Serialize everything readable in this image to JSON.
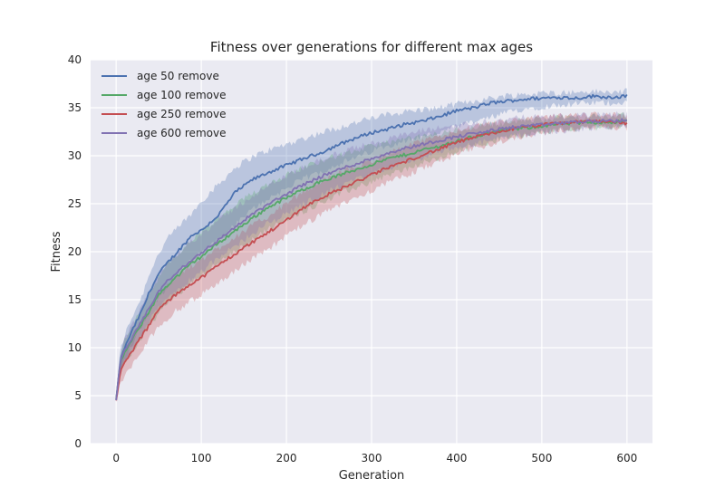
{
  "chart_data": {
    "type": "line",
    "title": "Fitness over generations for different max ages",
    "xlabel": "Generation",
    "ylabel": "Fitness",
    "xlim": [
      -30,
      630
    ],
    "ylim": [
      0,
      40
    ],
    "xticks": [
      0,
      100,
      200,
      300,
      400,
      500,
      600
    ],
    "yticks": [
      0,
      5,
      10,
      15,
      20,
      25,
      30,
      35,
      40
    ],
    "grid": true,
    "legend": "top-left",
    "colors": {
      "background": "#EAEAF2",
      "grid": "#FFFFFF"
    },
    "series": [
      {
        "name": "age 50 remove",
        "color": "#4C72B0",
        "x": [
          0,
          5,
          10,
          20,
          30,
          40,
          50,
          60,
          70,
          80,
          90,
          100,
          120,
          140,
          160,
          180,
          200,
          220,
          240,
          260,
          280,
          300,
          320,
          340,
          360,
          380,
          400,
          420,
          440,
          460,
          480,
          500,
          520,
          540,
          560,
          580,
          600
        ],
        "mean": [
          4.6,
          8.7,
          10.0,
          12.0,
          13.8,
          16.0,
          17.7,
          18.8,
          19.8,
          20.8,
          21.8,
          22.2,
          23.8,
          26.2,
          27.5,
          28.3,
          29.0,
          29.7,
          30.3,
          31.1,
          31.8,
          32.4,
          32.8,
          33.3,
          33.6,
          34.1,
          34.7,
          35.0,
          35.5,
          35.7,
          35.9,
          36.0,
          36.1,
          36.0,
          36.2,
          36.1,
          36.2
        ],
        "lower": [
          4.4,
          7.6,
          8.6,
          10.5,
          12.3,
          13.9,
          15.3,
          16.3,
          17.5,
          18.4,
          19.2,
          19.8,
          21.2,
          22.8,
          24.4,
          25.6,
          26.6,
          27.6,
          28.3,
          29.1,
          29.7,
          30.5,
          31.1,
          31.6,
          32.0,
          32.4,
          33.0,
          33.5,
          34.0,
          34.5,
          34.9,
          35.1,
          35.3,
          35.4,
          35.5,
          35.5,
          35.6
        ],
        "upper": [
          5.2,
          9.8,
          11.3,
          13.5,
          15.3,
          18.0,
          19.8,
          21.3,
          22.3,
          23.2,
          24.1,
          25.3,
          27.0,
          28.8,
          29.9,
          30.6,
          31.2,
          31.8,
          32.4,
          32.9,
          33.4,
          33.9,
          34.3,
          34.6,
          34.8,
          35.0,
          35.4,
          35.7,
          36.0,
          36.3,
          36.4,
          36.5,
          36.6,
          36.6,
          36.7,
          36.6,
          36.7
        ]
      },
      {
        "name": "age 100 remove",
        "color": "#55A868",
        "x": [
          0,
          5,
          10,
          20,
          30,
          40,
          50,
          60,
          70,
          80,
          90,
          100,
          120,
          140,
          160,
          180,
          200,
          220,
          240,
          260,
          280,
          300,
          320,
          340,
          360,
          380,
          400,
          420,
          440,
          460,
          480,
          500,
          520,
          540,
          560,
          580,
          600
        ],
        "mean": [
          4.5,
          8.5,
          9.5,
          11.0,
          12.5,
          14.0,
          15.5,
          16.5,
          17.3,
          18.1,
          18.9,
          19.5,
          20.9,
          22.2,
          23.5,
          24.7,
          25.6,
          26.5,
          27.3,
          27.9,
          28.5,
          29.1,
          29.7,
          30.1,
          30.6,
          31.0,
          31.5,
          32.0,
          32.4,
          32.7,
          32.9,
          33.1,
          33.3,
          33.4,
          33.5,
          33.5,
          33.6
        ],
        "lower": [
          4.3,
          7.5,
          8.3,
          9.8,
          11.0,
          12.4,
          13.6,
          14.6,
          15.4,
          16.2,
          17.0,
          17.6,
          18.8,
          20.0,
          21.2,
          22.4,
          23.3,
          24.2,
          25.1,
          25.9,
          26.6,
          27.3,
          28.0,
          28.6,
          29.2,
          29.7,
          30.4,
          31.0,
          31.5,
          31.9,
          32.2,
          32.5,
          32.7,
          32.8,
          32.9,
          33.0,
          33.1
        ],
        "upper": [
          5.0,
          9.4,
          10.7,
          12.4,
          14.0,
          15.8,
          17.4,
          18.6,
          19.5,
          20.4,
          21.3,
          22.1,
          23.4,
          24.8,
          26.1,
          27.2,
          28.0,
          28.8,
          29.5,
          30.0,
          30.5,
          31.0,
          31.4,
          31.7,
          32.0,
          32.3,
          32.7,
          33.0,
          33.3,
          33.5,
          33.7,
          33.8,
          34.0,
          34.0,
          34.1,
          34.1,
          34.2
        ]
      },
      {
        "name": "age 250 remove",
        "color": "#C44E52",
        "x": [
          0,
          5,
          10,
          20,
          30,
          40,
          50,
          60,
          70,
          80,
          90,
          100,
          120,
          140,
          160,
          180,
          200,
          220,
          240,
          260,
          280,
          300,
          320,
          340,
          360,
          380,
          400,
          420,
          440,
          460,
          480,
          500,
          520,
          540,
          560,
          580,
          600
        ],
        "mean": [
          4.5,
          7.5,
          8.5,
          9.8,
          11.2,
          12.5,
          14.0,
          14.8,
          15.5,
          16.2,
          16.8,
          17.3,
          18.6,
          19.8,
          21.0,
          22.1,
          23.3,
          24.6,
          25.6,
          26.4,
          27.2,
          28.0,
          28.8,
          29.4,
          30.1,
          30.7,
          31.4,
          31.9,
          32.3,
          32.7,
          33.0,
          33.2,
          33.4,
          33.5,
          33.6,
          33.6,
          33.4
        ],
        "lower": [
          4.3,
          6.2,
          7.0,
          8.3,
          9.6,
          11.0,
          12.3,
          13.0,
          13.8,
          14.4,
          15.0,
          15.5,
          16.8,
          18.0,
          19.3,
          20.4,
          21.6,
          22.8,
          23.8,
          24.7,
          25.6,
          26.4,
          27.2,
          27.9,
          28.7,
          29.4,
          30.1,
          30.7,
          31.2,
          31.7,
          32.1,
          32.4,
          32.6,
          32.8,
          32.9,
          33.0,
          32.9
        ],
        "upper": [
          5.0,
          8.7,
          9.8,
          11.3,
          12.8,
          14.0,
          15.6,
          16.5,
          17.3,
          18.0,
          18.6,
          19.1,
          20.4,
          21.6,
          22.7,
          23.8,
          25.0,
          26.3,
          27.3,
          28.1,
          28.8,
          29.5,
          30.3,
          30.9,
          31.5,
          32.0,
          32.6,
          33.0,
          33.3,
          33.6,
          33.8,
          34.0,
          34.1,
          34.2,
          34.3,
          34.3,
          34.0
        ]
      },
      {
        "name": "age 600 remove",
        "color": "#8172B2",
        "x": [
          0,
          5,
          10,
          20,
          30,
          40,
          50,
          60,
          70,
          80,
          90,
          100,
          120,
          140,
          160,
          180,
          200,
          220,
          240,
          260,
          280,
          300,
          320,
          340,
          360,
          380,
          400,
          420,
          440,
          460,
          480,
          500,
          520,
          540,
          560,
          580,
          600
        ],
        "mean": [
          4.5,
          8.6,
          9.7,
          11.2,
          12.7,
          14.3,
          15.9,
          16.9,
          17.7,
          18.5,
          19.2,
          19.9,
          21.2,
          22.6,
          23.9,
          25.0,
          26.0,
          27.0,
          27.8,
          28.5,
          29.1,
          29.7,
          30.3,
          30.8,
          31.2,
          31.6,
          32.0,
          32.3,
          32.6,
          32.9,
          33.1,
          33.2,
          33.4,
          33.5,
          33.6,
          33.6,
          33.7
        ],
        "lower": [
          4.3,
          7.7,
          8.6,
          10.0,
          11.3,
          12.8,
          14.2,
          15.1,
          15.9,
          16.6,
          17.3,
          18.0,
          19.3,
          20.6,
          21.9,
          23.0,
          24.0,
          25.0,
          25.9,
          26.7,
          27.4,
          28.1,
          28.7,
          29.3,
          29.8,
          30.3,
          30.8,
          31.2,
          31.6,
          31.9,
          32.2,
          32.4,
          32.6,
          32.7,
          32.9,
          33.0,
          33.1
        ],
        "upper": [
          5.0,
          9.5,
          10.8,
          12.5,
          14.2,
          15.9,
          17.6,
          18.7,
          19.6,
          20.5,
          21.2,
          21.9,
          23.2,
          24.6,
          25.8,
          26.9,
          27.9,
          28.8,
          29.6,
          30.2,
          30.8,
          31.3,
          31.8,
          32.2,
          32.6,
          32.9,
          33.2,
          33.4,
          33.6,
          33.8,
          34.0,
          34.0,
          34.1,
          34.2,
          34.3,
          34.3,
          34.3
        ]
      }
    ]
  }
}
